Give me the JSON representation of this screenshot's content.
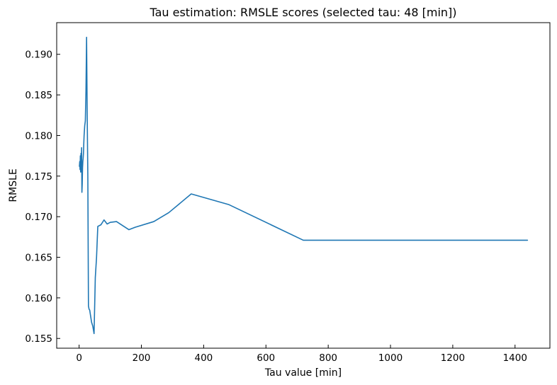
{
  "chart_data": {
    "type": "line",
    "title": "Tau estimation: RMSLE scores (selected tau: 48 [min])",
    "xlabel": "Tau value [min]",
    "ylabel": "RMSLE",
    "xlim": [
      -72,
      1512
    ],
    "ylim": [
      0.1538,
      0.1939
    ],
    "x_ticks": [
      0,
      200,
      400,
      600,
      800,
      1000,
      1200,
      1400
    ],
    "x_tick_labels": [
      "0",
      "200",
      "400",
      "600",
      "800",
      "1000",
      "1200",
      "1400"
    ],
    "y_ticks": [
      0.155,
      0.16,
      0.165,
      0.17,
      0.175,
      0.18,
      0.185,
      0.19
    ],
    "y_tick_labels": [
      "0.155",
      "0.160",
      "0.165",
      "0.170",
      "0.175",
      "0.180",
      "0.185",
      "0.190"
    ],
    "grid": false,
    "series": [
      {
        "color": "#1f77b4",
        "x": [
          1,
          2,
          3,
          4,
          5,
          6,
          7,
          8,
          9,
          10,
          11,
          12,
          13,
          14,
          15,
          16,
          18,
          20,
          22,
          24,
          26,
          28,
          30,
          32,
          34,
          36,
          40,
          44,
          48,
          52,
          56,
          60,
          70,
          80,
          90,
          100,
          120,
          140,
          160,
          180,
          240,
          288,
          360,
          480,
          720,
          1440
        ],
        "y": [
          0.1762,
          0.1768,
          0.1758,
          0.1775,
          0.1755,
          0.1778,
          0.176,
          0.1785,
          0.173,
          0.174,
          0.176,
          0.1768,
          0.1772,
          0.1778,
          0.179,
          0.18,
          0.1812,
          0.1818,
          0.1855,
          0.1921,
          0.1825,
          0.175,
          0.159,
          0.1586,
          0.1585,
          0.158,
          0.157,
          0.1565,
          0.1556,
          0.1625,
          0.165,
          0.1688,
          0.169,
          0.1696,
          0.1691,
          0.1693,
          0.1694,
          0.1689,
          0.1684,
          0.1687,
          0.1694,
          0.1705,
          0.1728,
          0.1715,
          0.1671,
          0.1671
        ]
      }
    ]
  }
}
